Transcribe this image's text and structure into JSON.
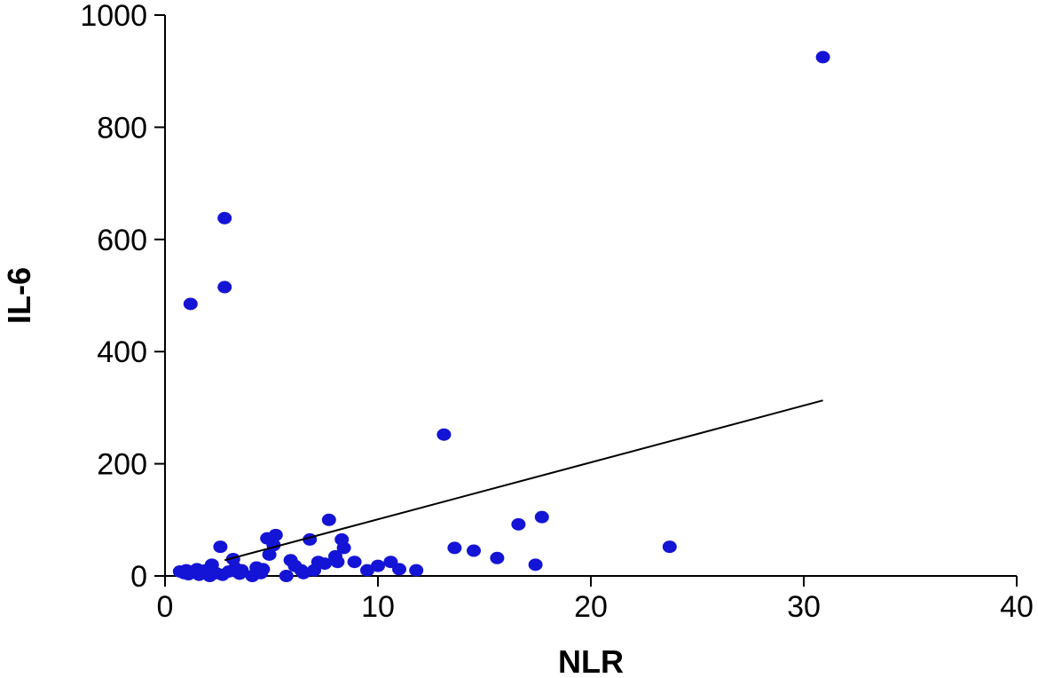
{
  "chart_data": {
    "type": "scatter",
    "title": "",
    "xlabel": "NLR",
    "ylabel": "IL-6",
    "xlim": [
      0,
      40
    ],
    "ylim": [
      0,
      1000
    ],
    "xticks": [
      0,
      10,
      20,
      30,
      40
    ],
    "yticks": [
      0,
      200,
      400,
      600,
      800,
      1000
    ],
    "grid": false,
    "point_color": "#1414d6",
    "line_color": "#000000",
    "series": [
      {
        "points": [
          [
            0.7,
            8
          ],
          [
            0.9,
            5
          ],
          [
            1.0,
            10
          ],
          [
            1.1,
            3
          ],
          [
            1.2,
            485
          ],
          [
            1.3,
            8
          ],
          [
            1.5,
            12
          ],
          [
            1.6,
            2
          ],
          [
            1.7,
            6
          ],
          [
            1.9,
            10
          ],
          [
            2.0,
            3
          ],
          [
            2.1,
            0
          ],
          [
            2.2,
            20
          ],
          [
            2.4,
            5
          ],
          [
            2.6,
            52
          ],
          [
            2.7,
            2
          ],
          [
            2.8,
            515
          ],
          [
            2.8,
            638
          ],
          [
            3.0,
            8
          ],
          [
            3.2,
            30
          ],
          [
            3.3,
            14
          ],
          [
            3.5,
            4
          ],
          [
            3.6,
            10
          ],
          [
            4.1,
            0
          ],
          [
            4.3,
            15
          ],
          [
            4.5,
            5
          ],
          [
            4.6,
            12
          ],
          [
            4.8,
            67
          ],
          [
            4.9,
            38
          ],
          [
            5.1,
            55
          ],
          [
            5.2,
            73
          ],
          [
            5.7,
            0
          ],
          [
            5.9,
            28
          ],
          [
            6.1,
            18
          ],
          [
            6.4,
            10
          ],
          [
            6.5,
            5
          ],
          [
            6.8,
            65
          ],
          [
            7.0,
            10
          ],
          [
            7.2,
            25
          ],
          [
            7.5,
            22
          ],
          [
            7.7,
            100
          ],
          [
            8.0,
            35
          ],
          [
            8.1,
            25
          ],
          [
            8.3,
            65
          ],
          [
            8.4,
            50
          ],
          [
            8.9,
            25
          ],
          [
            9.5,
            10
          ],
          [
            10.0,
            18
          ],
          [
            10.6,
            25
          ],
          [
            11.0,
            12
          ],
          [
            11.8,
            10
          ],
          [
            13.1,
            252
          ],
          [
            13.6,
            50
          ],
          [
            14.5,
            45
          ],
          [
            15.6,
            32
          ],
          [
            16.6,
            92
          ],
          [
            17.4,
            20
          ],
          [
            17.7,
            105
          ],
          [
            23.7,
            52
          ],
          [
            30.9,
            925
          ]
        ]
      }
    ],
    "trendline": {
      "x": [
        2.8,
        30.9
      ],
      "y": [
        28,
        313
      ]
    }
  }
}
